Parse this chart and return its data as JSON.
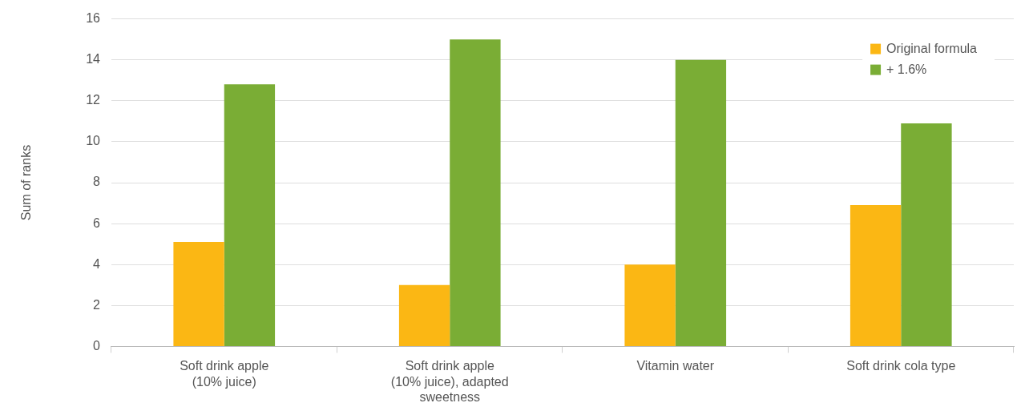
{
  "chart_data": {
    "type": "bar",
    "ylabel": "Sum of ranks",
    "categories": [
      "Soft drink apple (10% juice)",
      "Soft drink apple (10% juice), adapted sweetness",
      "Vitamin water",
      "Soft drink cola type"
    ],
    "series": [
      {
        "name": "Original formula",
        "color": "#fbb714",
        "values": [
          5.1,
          3,
          4,
          6.9
        ]
      },
      {
        "name": "+ 1.6%",
        "color": "#7aad35",
        "values": [
          12.8,
          15,
          14,
          10.9
        ]
      }
    ],
    "ylim": [
      0,
      16
    ],
    "yticks": [
      0,
      2,
      4,
      6,
      8,
      10,
      12,
      14,
      16
    ],
    "grid": "y",
    "legend": "top right"
  }
}
